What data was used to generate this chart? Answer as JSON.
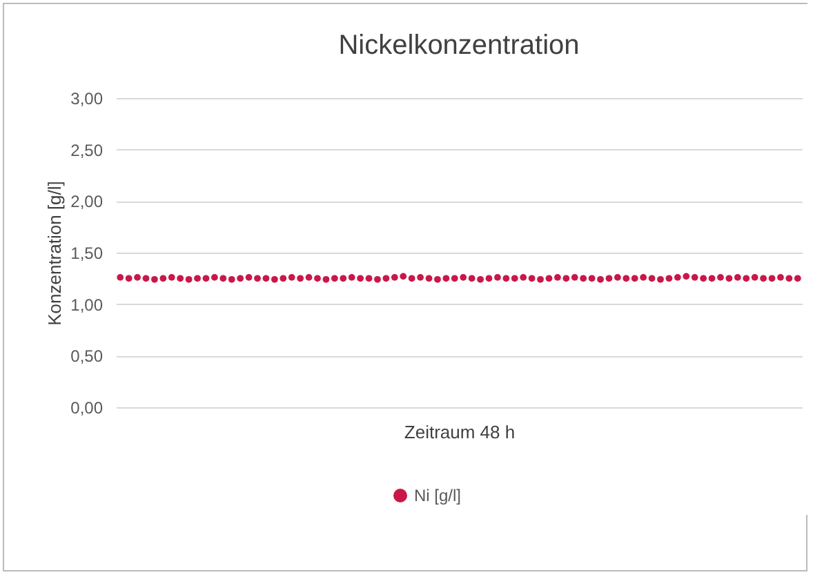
{
  "chart_data": {
    "type": "scatter",
    "title": "Nickelkonzentration",
    "xlabel": "Zeitraum 48 h",
    "ylabel": "Konzentration [g/l]",
    "categories": [
      null,
      null,
      null,
      null,
      null,
      null,
      null,
      null,
      null,
      null,
      null,
      null,
      null,
      null,
      null,
      null,
      null,
      null,
      null,
      null,
      null,
      null,
      null,
      null,
      null,
      null,
      null,
      null,
      null,
      null,
      null,
      null,
      null,
      null,
      null,
      null,
      null,
      null,
      null,
      null,
      null,
      null,
      null,
      null,
      null,
      null,
      null,
      null,
      null,
      null,
      null,
      null,
      null,
      null,
      null,
      null,
      null,
      null,
      null,
      null,
      null,
      null,
      null,
      null,
      null,
      null,
      null,
      null,
      null,
      null,
      null,
      null,
      null,
      null,
      null,
      null,
      null,
      null,
      null,
      null
    ],
    "series": [
      {
        "name": "Ni [g/l]",
        "color": "#c8184a",
        "values": [
          1.26,
          1.25,
          1.26,
          1.25,
          1.24,
          1.25,
          1.26,
          1.25,
          1.24,
          1.25,
          1.25,
          1.26,
          1.25,
          1.24,
          1.25,
          1.26,
          1.25,
          1.25,
          1.24,
          1.25,
          1.26,
          1.25,
          1.26,
          1.25,
          1.24,
          1.25,
          1.25,
          1.26,
          1.25,
          1.25,
          1.24,
          1.25,
          1.26,
          1.27,
          1.25,
          1.26,
          1.25,
          1.24,
          1.25,
          1.25,
          1.26,
          1.25,
          1.24,
          1.25,
          1.26,
          1.25,
          1.25,
          1.26,
          1.25,
          1.24,
          1.25,
          1.26,
          1.25,
          1.26,
          1.25,
          1.25,
          1.24,
          1.25,
          1.26,
          1.25,
          1.25,
          1.26,
          1.25,
          1.24,
          1.25,
          1.26,
          1.27,
          1.26,
          1.25,
          1.25,
          1.26,
          1.25,
          1.26,
          1.25,
          1.26,
          1.25,
          1.25,
          1.26,
          1.25,
          1.25
        ]
      }
    ],
    "ylim": [
      0,
      3
    ],
    "yticks": [
      {
        "value": 0,
        "label": "0,00"
      },
      {
        "value": 0.5,
        "label": "0,50"
      },
      {
        "value": 1,
        "label": "1,00"
      },
      {
        "value": 1.5,
        "label": "1,50"
      },
      {
        "value": 2,
        "label": "2,00"
      },
      {
        "value": 2.5,
        "label": "2,50"
      },
      {
        "value": 3,
        "label": "3,00"
      }
    ],
    "grid": "y",
    "legend": "bottom",
    "marker": "circle"
  }
}
